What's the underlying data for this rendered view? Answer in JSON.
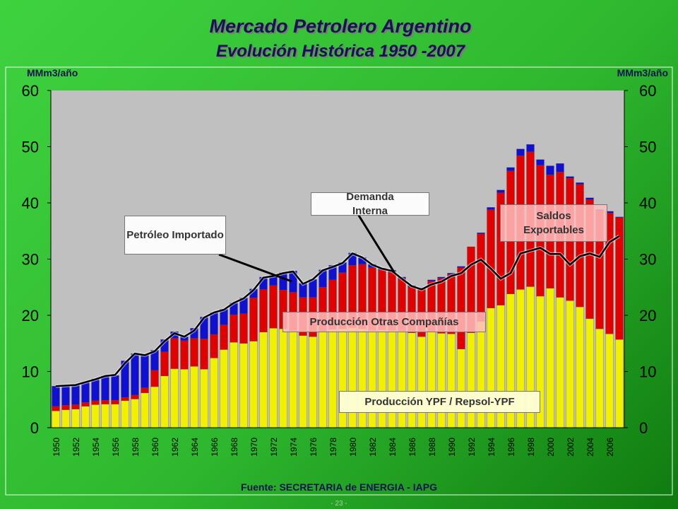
{
  "chart_data": {
    "type": "bar",
    "stacked": true,
    "title": "Mercado Petrolero Argentino",
    "subtitle": "Evolución  Histórica 1950 -2007",
    "y_label": "MMm3/año",
    "y2_label": "MMm3/año",
    "source": "Fuente: SECRETARIA de ENERGIA -  IAPG",
    "page_number": "- 23 -",
    "annotations": [
      "Saldos Exportables"
    ],
    "categories": [
      "1950",
      null,
      "1952",
      null,
      "1954",
      null,
      "1956",
      null,
      "1958",
      null,
      "1960",
      null,
      "1962",
      null,
      "1964",
      null,
      "1966",
      null,
      "1968",
      null,
      "1970",
      null,
      "1972",
      null,
      "1974",
      null,
      "1976",
      null,
      "1978",
      null,
      "1980",
      null,
      "1982",
      null,
      "1984",
      null,
      "1986",
      null,
      "1988",
      null,
      "1990",
      null,
      "1992",
      null,
      "1994",
      null,
      "1996",
      null,
      "1998",
      null,
      "2000",
      null,
      "2002",
      null,
      "2004",
      null,
      "2006",
      null
    ],
    "series": [
      {
        "name": "Producción YPF / Repsol-YPF",
        "color": "#f0f000",
        "values": [
          3.0,
          3.2,
          3.3,
          3.8,
          4.1,
          4.2,
          4.2,
          4.8,
          5.1,
          6.2,
          7.3,
          9.2,
          10.5,
          10.4,
          10.9,
          10.4,
          12.4,
          13.9,
          15.2,
          15.0,
          15.4,
          17.0,
          17.7,
          17.6,
          17.2,
          16.4,
          16.2,
          17.0,
          17.5,
          17.6,
          17.8,
          17.6,
          17.3,
          17.4,
          17.3,
          17.2,
          16.9,
          16.2,
          17.0,
          16.8,
          16.7,
          14.0,
          16.9,
          18.9,
          21.3,
          21.8,
          23.8,
          24.6,
          25.1,
          23.4,
          24.8,
          23.2,
          22.6,
          21.5,
          19.4,
          17.6,
          16.7,
          15.7
        ]
      },
      {
        "name": "Producción Otras Compañías",
        "color": "#e00000",
        "values": [
          0.8,
          0.8,
          0.8,
          0.7,
          0.7,
          0.7,
          0.7,
          0.6,
          0.7,
          0.9,
          2.9,
          4.3,
          5.4,
          5.1,
          5.0,
          5.4,
          4.2,
          4.4,
          4.9,
          5.3,
          7.7,
          7.6,
          7.6,
          6.9,
          6.9,
          6.8,
          7.0,
          8.0,
          8.8,
          10.0,
          11.1,
          11.5,
          11.2,
          10.7,
          10.4,
          9.4,
          8.2,
          8.5,
          9.1,
          9.8,
          10.6,
          14.5,
          15.3,
          15.6,
          17.5,
          20.0,
          21.9,
          23.8,
          24.0,
          23.3,
          20.2,
          22.3,
          21.8,
          21.8,
          21.2,
          21.0,
          21.5,
          21.7
        ]
      },
      {
        "name": "Petróleo Importado",
        "color": "#1010d0",
        "values": [
          3.6,
          3.5,
          3.5,
          3.6,
          3.9,
          4.3,
          4.4,
          6.5,
          7.4,
          5.8,
          3.6,
          2.2,
          1.2,
          0.7,
          1.8,
          3.9,
          3.9,
          2.8,
          2.1,
          2.8,
          1.6,
          2.2,
          1.8,
          3.1,
          3.8,
          2.5,
          3.2,
          3.1,
          2.6,
          1.8,
          2.2,
          1.2,
          0.6,
          0.3,
          0.3,
          0.2,
          0.2,
          0.2,
          0.2,
          0.2,
          0.2,
          0.2,
          0,
          0.2,
          0.4,
          0.5,
          0.6,
          1.2,
          1.3,
          1.0,
          1.6,
          1.5,
          0.3,
          0.3,
          0.3,
          0.2,
          0.3,
          0.1
        ]
      },
      {
        "name": "Demanda Interna",
        "type": "line",
        "color": "#000000",
        "values": [
          7.4,
          7.5,
          7.6,
          8.1,
          8.6,
          9.2,
          9.4,
          11.5,
          13.2,
          12.9,
          13.6,
          15.4,
          16.8,
          16.2,
          17.3,
          19.6,
          20.5,
          21.0,
          22.2,
          23.0,
          24.5,
          26.7,
          27.0,
          27.5,
          27.8,
          25.6,
          26.4,
          28.0,
          28.6,
          29.3,
          31.0,
          30.3,
          29.0,
          28.3,
          27.9,
          26.5,
          25.2,
          24.6,
          25.5,
          26.0,
          27.0,
          27.5,
          29.0,
          29.9,
          28.3,
          26.5,
          27.5,
          31.0,
          31.5,
          32.0,
          30.9,
          30.9,
          29.0,
          30.5,
          31.0,
          30.4,
          33.0,
          34.1
        ]
      }
    ],
    "ylim": [
      0,
      60
    ],
    "yticks": [
      0,
      10,
      20,
      30,
      40,
      50,
      60
    ],
    "y2lim": [
      0,
      60
    ],
    "y2ticks": [
      0,
      10,
      20,
      30,
      40,
      50,
      60
    ],
    "grid": false
  }
}
